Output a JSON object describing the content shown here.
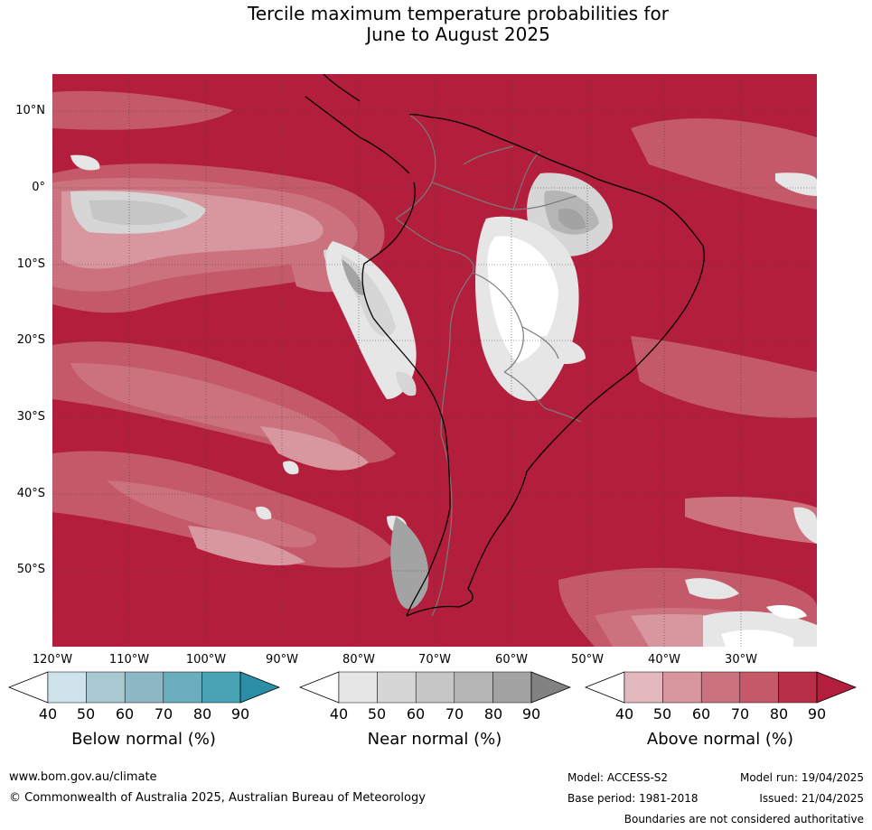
{
  "title": {
    "line1": "Tercile maximum temperature probabilities for",
    "line2": "June to August 2025"
  },
  "axes": {
    "lat_labels": [
      "10°N",
      "0°",
      "10°S",
      "20°S",
      "30°S",
      "40°S",
      "50°S"
    ],
    "lon_labels": [
      "120°W",
      "110°W",
      "100°W",
      "90°W",
      "80°W",
      "70°W",
      "60°W",
      "50°W",
      "40°W",
      "30°W"
    ]
  },
  "legends": [
    {
      "title": "Below normal (%)",
      "ticks": [
        "40",
        "50",
        "60",
        "70",
        "80",
        "90"
      ],
      "colors": [
        "#ffffff",
        "#cde3e9",
        "#a8c9d1",
        "#8bb8c4",
        "#6aadbd",
        "#48a3b5",
        "#2a8ea7"
      ]
    },
    {
      "title": "Near normal (%)",
      "ticks": [
        "40",
        "50",
        "60",
        "70",
        "80",
        "90"
      ],
      "colors": [
        "#ffffff",
        "#e6e6e6",
        "#d6d6d6",
        "#c6c6c6",
        "#b5b5b5",
        "#a3a3a3",
        "#828282"
      ]
    },
    {
      "title": "Above normal (%)",
      "ticks": [
        "40",
        "50",
        "60",
        "70",
        "80",
        "90"
      ],
      "colors": [
        "#ffffff",
        "#e4b8bf",
        "#d8969f",
        "#cc727f",
        "#c45a69",
        "#b82f48",
        "#b21e3b"
      ]
    }
  ],
  "footer": {
    "url": "www.bom.gov.au/climate",
    "copyright": "© Commonwealth of Australia 2025, Australian Bureau of Meteorology",
    "model": "Model: ACCESS-S2",
    "model_run": "Model run: 19/04/2025",
    "base_period": "Base period: 1981-2018",
    "issued": "Issued: 21/04/2025",
    "disclaimer": "Boundaries are not considered authoritative"
  }
}
